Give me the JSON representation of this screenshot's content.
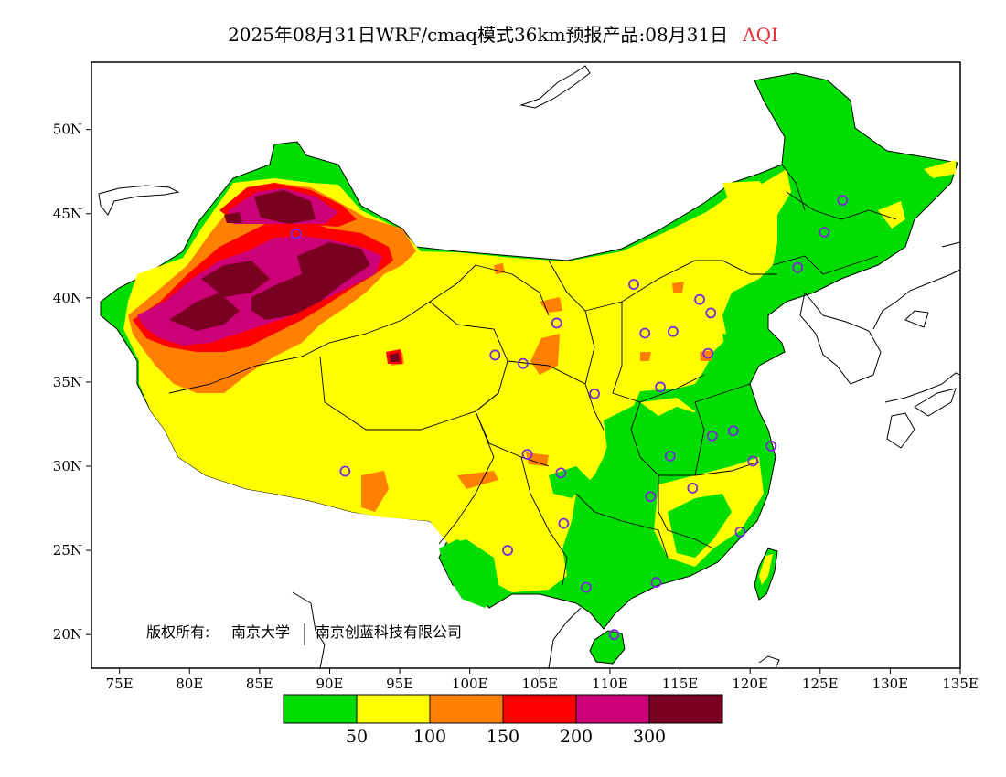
{
  "title": {
    "main": "2025年08月31日WRF/cmaq模式36km预报产品:08月31日",
    "variable": "AQI",
    "variable_color": "#e0303a"
  },
  "copyright": {
    "prefix": "版权所有:",
    "org1": "南京大学",
    "org2": "南京创蓝科技有限公司"
  },
  "axes": {
    "x_ticks": [
      "75E",
      "80E",
      "85E",
      "90E",
      "95E",
      "100E",
      "105E",
      "110E",
      "115E",
      "120E",
      "125E",
      "130E",
      "135E"
    ],
    "y_ticks": [
      "20N",
      "25N",
      "30N",
      "35N",
      "40N",
      "45N",
      "50N"
    ],
    "lon_range": [
      73,
      135
    ],
    "lat_range": [
      18,
      54
    ]
  },
  "legend": {
    "colors": [
      "#00dd00",
      "#ffff00",
      "#ff8000",
      "#ff0000",
      "#cc0077",
      "#7a0022"
    ],
    "labels": [
      "50",
      "100",
      "150",
      "200",
      "300"
    ]
  },
  "stations": [
    {
      "lon": 87.6,
      "lat": 43.8
    },
    {
      "lon": 91.1,
      "lat": 29.7
    },
    {
      "lon": 101.8,
      "lat": 36.6
    },
    {
      "lon": 103.8,
      "lat": 36.1
    },
    {
      "lon": 106.2,
      "lat": 38.5
    },
    {
      "lon": 111.7,
      "lat": 40.8
    },
    {
      "lon": 116.4,
      "lat": 39.9
    },
    {
      "lon": 117.2,
      "lat": 39.1
    },
    {
      "lon": 114.5,
      "lat": 38.0
    },
    {
      "lon": 112.5,
      "lat": 37.9
    },
    {
      "lon": 117.0,
      "lat": 36.7
    },
    {
      "lon": 113.6,
      "lat": 34.7
    },
    {
      "lon": 108.9,
      "lat": 34.3
    },
    {
      "lon": 104.1,
      "lat": 30.7
    },
    {
      "lon": 106.5,
      "lat": 29.6
    },
    {
      "lon": 102.7,
      "lat": 25.0
    },
    {
      "lon": 106.7,
      "lat": 26.6
    },
    {
      "lon": 108.3,
      "lat": 22.8
    },
    {
      "lon": 113.3,
      "lat": 23.1
    },
    {
      "lon": 110.3,
      "lat": 20.0
    },
    {
      "lon": 112.9,
      "lat": 28.2
    },
    {
      "lon": 114.3,
      "lat": 30.6
    },
    {
      "lon": 115.9,
      "lat": 28.7
    },
    {
      "lon": 117.3,
      "lat": 31.8
    },
    {
      "lon": 118.8,
      "lat": 32.1
    },
    {
      "lon": 120.2,
      "lat": 30.3
    },
    {
      "lon": 121.5,
      "lat": 31.2
    },
    {
      "lon": 119.3,
      "lat": 26.1
    },
    {
      "lon": 123.4,
      "lat": 41.8
    },
    {
      "lon": 125.3,
      "lat": 43.9
    },
    {
      "lon": 126.6,
      "lat": 45.8
    }
  ]
}
